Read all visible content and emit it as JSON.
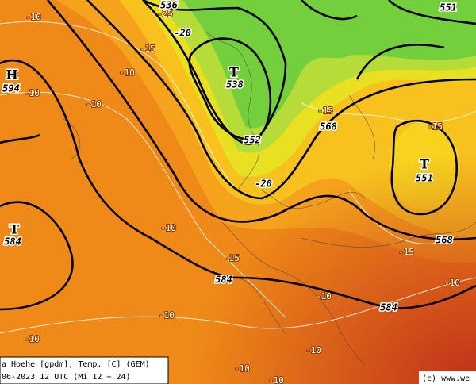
{
  "legend": {
    "line1": "a Hoehe [gpdm], Temp. [C] (GEM)",
    "line2": "06-2023 12 UTC (Mi 12 + 24)"
  },
  "copyright": "(c) www.we",
  "labels": [
    "-10",
    "536",
    "-25",
    "551",
    "-20",
    "-15",
    "-10",
    "H",
    "594",
    "-10",
    "-10",
    "T",
    "538",
    "-15",
    "568",
    "-15",
    "552",
    "T",
    "551",
    "-20",
    "T",
    "584",
    "-10",
    "568",
    "-15",
    "-15",
    "584",
    "-10",
    "-10",
    "584",
    "-10",
    "-10",
    "-10",
    "-10",
    "-10"
  ]
}
